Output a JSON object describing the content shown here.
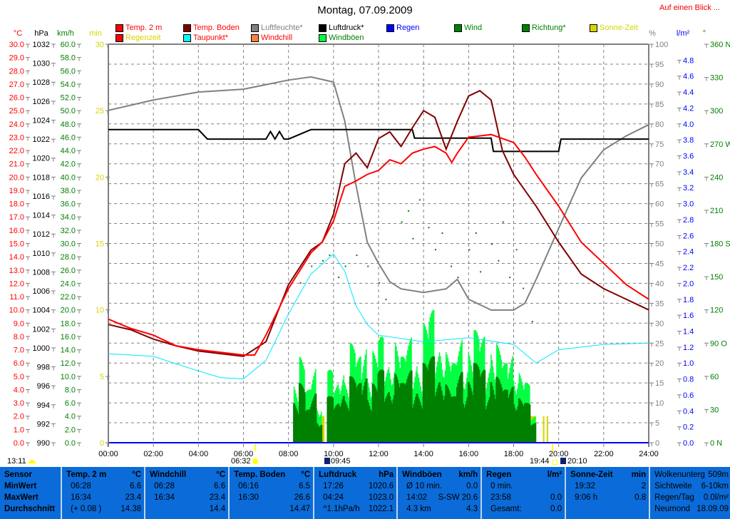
{
  "title": "Montag, 07.09.2009",
  "glance_link": "Auf einen Blick ...",
  "legend": [
    {
      "label": "Temp. 2 m",
      "color": "#ff0000",
      "text_color": "#ff0000"
    },
    {
      "label": "Temp. Boden",
      "color": "#800000",
      "text_color": "#ff0000"
    },
    {
      "label": "Luftfeuchte*",
      "color": "#808080",
      "text_color": "#808080"
    },
    {
      "label": "Luftdruck*",
      "color": "#000000",
      "text_color": "#000000"
    },
    {
      "label": "Regen",
      "color": "#0000ff",
      "text_color": "#0000ff"
    },
    {
      "label": "Wind",
      "color": "#008000",
      "text_color": "#008000"
    },
    {
      "label": "Richtung*",
      "color": "#008000",
      "text_color": "#008000"
    },
    {
      "label": "Sonne-Zeit",
      "color": "#d6d600",
      "text_color": "#d6d600"
    },
    {
      "label": "Regenzeit",
      "color": "#ff0000",
      "text_color": "#d6d600"
    },
    {
      "label": "Taupunkt*",
      "color": "#00ffff",
      "text_color": "#ff0000"
    },
    {
      "label": "Windchill",
      "color": "#ff8040",
      "text_color": "#ff0000"
    },
    {
      "label": "Windböen",
      "color": "#00ff40",
      "text_color": "#008000"
    }
  ],
  "axis_units": {
    "temp": "°C",
    "pressure": "hPa",
    "wind": "km/h",
    "sun": "min",
    "humidity": "%",
    "rain": "l/m²",
    "direction": "°"
  },
  "chart_data": {
    "type": "line",
    "x_range": [
      "00:00",
      "24:00"
    ],
    "x_ticks": [
      "00:00",
      "02:00",
      "04:00",
      "06:00",
      "08:00",
      "10:00",
      "12:00",
      "14:00",
      "16:00",
      "18:00",
      "20:00",
      "22:00",
      "24:00"
    ],
    "grid": true,
    "axes": {
      "temp": {
        "range": [
          0,
          30
        ],
        "ticks": [
          "30.0",
          "29.0",
          "28.0",
          "27.0",
          "26.0",
          "25.0",
          "24.0",
          "23.0",
          "22.0",
          "21.0",
          "20.0",
          "19.0",
          "18.0",
          "17.0",
          "16.0",
          "15.0",
          "14.0",
          "13.0",
          "12.0",
          "11.0",
          "10.0",
          "9.0",
          "8.0",
          "7.0",
          "6.0",
          "5.0",
          "4.0",
          "3.0",
          "2.0",
          "1.0",
          "0.0"
        ],
        "color": "#ff0000"
      },
      "pressure": {
        "range": [
          990,
          1032
        ],
        "ticks": [
          "1032",
          "1030",
          "1028",
          "1026",
          "1024",
          "1022",
          "1020",
          "1018",
          "1016",
          "1014",
          "1012",
          "1010",
          "1008",
          "1006",
          "1004",
          "1002",
          "1000",
          "998",
          "996",
          "994",
          "992",
          "990"
        ],
        "color": "#000000"
      },
      "wind": {
        "range": [
          0,
          60
        ],
        "ticks": [
          "60.0",
          "58.0",
          "56.0",
          "54.0",
          "52.0",
          "50.0",
          "48.0",
          "46.0",
          "44.0",
          "42.0",
          "40.0",
          "38.0",
          "36.0",
          "34.0",
          "32.0",
          "30.0",
          "28.0",
          "26.0",
          "24.0",
          "22.0",
          "20.0",
          "18.0",
          "16.0",
          "14.0",
          "12.0",
          "10.0",
          "8.0",
          "6.0",
          "4.0",
          "2.0",
          "0.0"
        ],
        "color": "#008000"
      },
      "sun": {
        "range": [
          0,
          30
        ],
        "ticks": [
          "30",
          "25",
          "20",
          "15",
          "10",
          "5",
          "0"
        ],
        "color": "#d6d600"
      },
      "humidity": {
        "range": [
          0,
          100
        ],
        "ticks": [
          "100",
          "95",
          "90",
          "85",
          "80",
          "75",
          "70",
          "65",
          "60",
          "55",
          "50",
          "45",
          "40",
          "35",
          "30",
          "25",
          "20",
          "15",
          "10",
          "5",
          "0"
        ],
        "color": "#808080"
      },
      "rain": {
        "range": [
          0,
          5
        ],
        "ticks": [
          "4.8",
          "4.6",
          "4.4",
          "4.2",
          "4.0",
          "3.8",
          "3.6",
          "3.4",
          "3.2",
          "3.0",
          "2.8",
          "2.6",
          "2.4",
          "2.2",
          "2.0",
          "1.8",
          "1.6",
          "1.4",
          "1.2",
          "1.0",
          "0.8",
          "0.6",
          "0.4",
          "0.2",
          "0.0"
        ],
        "color": "#0000ff"
      },
      "direction": {
        "range": [
          0,
          360
        ],
        "ticks": [
          "360 N",
          "330",
          "300",
          "270 W",
          "240",
          "210",
          "180 S",
          "150",
          "120",
          "90 O",
          "60",
          "30",
          "0 N"
        ],
        "color": "#008000"
      }
    },
    "series": [
      {
        "name": "Temp. 2 m",
        "axis": "temp",
        "color": "#ff0000",
        "x": [
          0,
          1,
          2,
          3,
          4,
          5,
          6,
          6.5,
          7,
          8,
          9,
          9.5,
          10,
          10.5,
          11,
          11.5,
          12,
          12.5,
          13,
          13.5,
          14,
          14.5,
          15,
          15.25,
          15.5,
          16,
          16.5,
          17,
          17.5,
          18,
          18.5,
          19,
          20,
          21,
          22,
          23,
          24
        ],
        "y": [
          9.3,
          8.6,
          8.1,
          7.3,
          7.0,
          6.8,
          6.6,
          6.6,
          8.1,
          11.6,
          14.3,
          15.1,
          16.7,
          19.3,
          19.7,
          20.2,
          20.5,
          21.3,
          21.0,
          21.8,
          22.1,
          22.3,
          21.8,
          21.1,
          21.8,
          23.0,
          23.1,
          23.2,
          22.9,
          22.6,
          21.5,
          20.2,
          17.8,
          15.1,
          13.5,
          11.9,
          10.8
        ]
      },
      {
        "name": "Temp. Boden",
        "axis": "temp",
        "color": "#800000",
        "x": [
          0,
          1,
          2,
          3,
          4,
          5,
          6,
          7,
          8,
          9,
          9.5,
          10,
          10.5,
          11,
          11.5,
          12,
          12.5,
          13,
          13.5,
          14,
          14.5,
          15,
          15.5,
          16,
          16.5,
          17,
          17.5,
          18,
          19,
          20,
          21,
          22,
          23,
          24
        ],
        "y": [
          8.9,
          8.5,
          7.8,
          7.3,
          6.9,
          6.7,
          6.5,
          7.6,
          11.9,
          14.5,
          15.1,
          17.2,
          21.0,
          21.8,
          20.7,
          22.9,
          23.4,
          22.3,
          23.7,
          25.0,
          24.5,
          22.1,
          24.2,
          26.1,
          26.5,
          25.8,
          22.0,
          20.2,
          17.8,
          15.1,
          12.7,
          11.6,
          10.8,
          10.0
        ]
      },
      {
        "name": "Taupunkt*",
        "axis": "temp",
        "color": "#00e8ff",
        "x": [
          0,
          2,
          4,
          5,
          6,
          7,
          8,
          9,
          10,
          10.5,
          11,
          11.5,
          12,
          14,
          16,
          18,
          19,
          19.5,
          20,
          22,
          24
        ],
        "y": [
          6.7,
          6.5,
          5.4,
          4.9,
          4.8,
          6.2,
          9.7,
          12.7,
          14.2,
          12.9,
          10.3,
          8.9,
          8.1,
          7.6,
          7.9,
          7.4,
          6.0,
          6.5,
          7.0,
          7.4,
          7.5
        ]
      },
      {
        "name": "Luftfeuchte*",
        "axis": "humidity",
        "color": "#808080",
        "x": [
          0,
          2,
          4,
          6,
          8,
          9,
          10,
          10.5,
          11,
          11.5,
          12,
          12.5,
          13,
          14,
          15,
          15.5,
          16,
          17,
          18,
          18.5,
          19,
          20,
          21,
          22,
          23,
          24
        ],
        "y": [
          83.4,
          86,
          88,
          88.7,
          91,
          91.8,
          90.5,
          80.7,
          64.6,
          50.3,
          45,
          40.4,
          38.6,
          37.7,
          38.6,
          41,
          36,
          33.3,
          33.3,
          35,
          41,
          53.8,
          66.4,
          73.5,
          77,
          79.8
        ]
      },
      {
        "name": "Luftdruck*",
        "axis": "pressure",
        "color": "#000000",
        "x": [
          0,
          4,
          4.4,
          7,
          7.2,
          7.4,
          7.6,
          7.8,
          8,
          9,
          13.5,
          13.6,
          17,
          17.1,
          20,
          20.1,
          24
        ],
        "y": [
          1023.0,
          1023.0,
          1022.0,
          1022.0,
          1022.8,
          1022.0,
          1022.8,
          1022.0,
          1022.0,
          1023.0,
          1023.0,
          1022.1,
          1022.1,
          1020.7,
          1020.7,
          1022.0,
          1022.0
        ]
      },
      {
        "name": "Windböen",
        "axis": "wind",
        "color": "#00ff40",
        "x": [
          8,
          8.25,
          8.5,
          8.75,
          9,
          9.25,
          9.5,
          9.75,
          10,
          10.25,
          10.5,
          10.75,
          11,
          11.25,
          11.5,
          11.75,
          12,
          12.25,
          12.5,
          12.75,
          13,
          13.25,
          13.5,
          13.75,
          14,
          14.25,
          14.5,
          14.75,
          15,
          15.25,
          15.5,
          15.75,
          16,
          16.25,
          16.5,
          16.75,
          17,
          17.25,
          17.5,
          17.75,
          18,
          18.25,
          18.5,
          18.75,
          19
        ],
        "y": [
          0,
          10,
          13,
          8,
          12,
          7,
          0,
          11,
          9,
          13,
          10,
          15,
          13,
          16,
          12,
          14,
          16,
          12,
          15,
          16,
          13,
          16,
          14,
          12,
          18,
          20,
          15,
          17,
          14,
          12,
          16,
          14,
          15,
          17,
          16,
          13,
          16,
          15,
          12,
          14,
          13,
          11,
          9,
          4,
          0
        ]
      },
      {
        "name": "Wind",
        "axis": "wind",
        "color": "#008000",
        "x": [
          8,
          8.25,
          8.5,
          8.75,
          9,
          9.25,
          9.5,
          9.75,
          10,
          10.25,
          10.5,
          10.75,
          11,
          11.25,
          11.5,
          11.75,
          12,
          12.25,
          12.5,
          12.75,
          13,
          13.25,
          13.5,
          13.75,
          14,
          14.25,
          14.5,
          14.75,
          15,
          15.25,
          15.5,
          15.75,
          16,
          16.25,
          16.5,
          16.75,
          17,
          17.25,
          17.5,
          17.75,
          18,
          18.25,
          18.5,
          18.75,
          19
        ],
        "y": [
          0,
          7,
          9,
          5,
          8,
          4,
          0,
          7,
          6,
          9,
          7,
          10,
          9,
          11,
          8,
          9,
          11,
          8,
          10,
          11,
          9,
          11,
          9,
          8,
          12,
          13,
          10,
          11,
          9,
          7,
          11,
          9,
          10,
          12,
          11,
          8,
          11,
          10,
          8,
          9,
          8,
          7,
          6,
          3,
          0
        ]
      }
    ],
    "sun_minutes": {
      "axis": "sun",
      "color": "#d6d600",
      "intervals": [
        [
          "09:24",
          "09:36",
          2
        ],
        [
          "10:30",
          "19:00",
          2
        ],
        [
          "19:18",
          "19:22",
          2
        ],
        [
          "19:28",
          "19:32",
          2
        ]
      ]
    },
    "direction_points": {
      "axis": "direction",
      "color": "#008000",
      "x": [
        8.2,
        8.5,
        9.0,
        9.5,
        9.8,
        10.2,
        10.5,
        11.0,
        11.5,
        12.0,
        12.3,
        13.0,
        13.3,
        13.5,
        13.8,
        14.2,
        14.5,
        14.8,
        15.2,
        15.5,
        16.0,
        16.3,
        16.5,
        17.0,
        17.3,
        17.5,
        17.8,
        18.1,
        18.4,
        18.8
      ],
      "y": [
        150,
        145,
        160,
        165,
        170,
        150,
        160,
        170,
        160,
        145,
        130,
        200,
        210,
        185,
        220,
        195,
        175,
        190,
        160,
        150,
        175,
        190,
        155,
        180,
        165,
        200,
        150,
        175,
        140,
        110
      ]
    },
    "rain": {
      "axis": "rain",
      "color": "#0000ff",
      "total": 0.0
    }
  },
  "astro": {
    "moonrise": "13:11",
    "sunrise": "06:32",
    "sun_start": "09:45",
    "sunset": "19:44",
    "sun_end": "20:10"
  },
  "table": {
    "sensor": {
      "title": "Sensor",
      "rows": [
        "MinWert",
        "MaxWert",
        "Durchschnitt"
      ]
    },
    "columns": [
      {
        "title": "Temp. 2 m",
        "unit": "°C",
        "rows": [
          [
            "06:28",
            "6.6"
          ],
          [
            "16:34",
            "23.4"
          ],
          [
            "(+ 0.08 )",
            "14.38"
          ]
        ]
      },
      {
        "title": "Windchill",
        "unit": "°C",
        "rows": [
          [
            "06:28",
            "6.6"
          ],
          [
            "16:34",
            "23.4"
          ],
          [
            "",
            "14.4"
          ]
        ]
      },
      {
        "title": "Temp. Boden",
        "unit": "°C",
        "rows": [
          [
            "06:16",
            "6.5"
          ],
          [
            "16:30",
            "26.6"
          ],
          [
            "",
            "14.47"
          ]
        ]
      },
      {
        "title": "Luftdruck",
        "unit": "hPa",
        "rows": [
          [
            "17:26",
            "1020.6"
          ],
          [
            "04:24",
            "1023.0"
          ],
          [
            "^1.1hPa/h",
            "1022.1"
          ]
        ]
      },
      {
        "title": "Windböen",
        "unit": "km/h",
        "rows": [
          [
            "Ø 10 min.",
            "0.0"
          ],
          [
            "14:02",
            "S-SW 20.6"
          ],
          [
            "4.3 km",
            "4.3"
          ]
        ]
      },
      {
        "title": "Regen",
        "unit": "l/m²",
        "rows": [
          [
            "0 min.",
            ""
          ],
          [
            "23:58",
            "0.0"
          ],
          [
            "Gesamt:",
            "0.0"
          ]
        ]
      },
      {
        "title": "Sonne-Zeit",
        "unit": "min",
        "rows": [
          [
            "",
            ""
          ],
          [
            "19:32",
            "2"
          ],
          [
            "9:06 h",
            "0.8"
          ]
        ]
      }
    ],
    "info": [
      [
        "Wolkenunterg",
        "509m"
      ],
      [
        "Sichtweite",
        "6-10km"
      ],
      [
        "Regen/Tag",
        "0.0l/m²"
      ],
      [
        "Neumond",
        "18.09.09"
      ]
    ]
  }
}
